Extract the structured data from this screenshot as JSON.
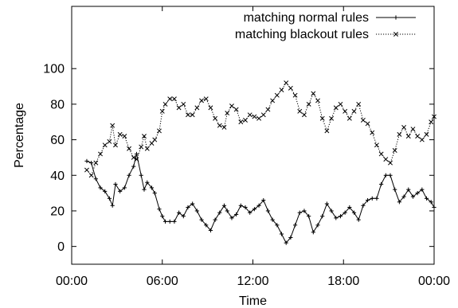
{
  "chart_data": {
    "type": "line",
    "title": "",
    "xlabel": "Time",
    "ylabel": "Percentage",
    "xlim": [
      0,
      24
    ],
    "ylim": [
      -10,
      135
    ],
    "x_ticks": [
      {
        "value": 0,
        "label": "00:00"
      },
      {
        "value": 6,
        "label": "06:00"
      },
      {
        "value": 12,
        "label": "12:00"
      },
      {
        "value": 18,
        "label": "18:00"
      },
      {
        "value": 24,
        "label": "00:00"
      }
    ],
    "y_ticks": [
      0,
      20,
      40,
      60,
      80,
      100
    ],
    "legend_position": "top-right",
    "grid": false,
    "series": [
      {
        "name": "matching normal rules",
        "marker": "plus",
        "line_style": "solid",
        "points": [
          [
            1.0,
            48
          ],
          [
            1.3,
            47
          ],
          [
            1.6,
            38
          ],
          [
            1.9,
            33
          ],
          [
            2.2,
            31
          ],
          [
            2.5,
            27
          ],
          [
            2.7,
            23
          ],
          [
            2.9,
            35
          ],
          [
            3.2,
            31
          ],
          [
            3.5,
            33
          ],
          [
            3.8,
            40
          ],
          [
            4.1,
            45
          ],
          [
            4.3,
            52
          ],
          [
            4.6,
            40
          ],
          [
            4.8,
            32
          ],
          [
            5.0,
            36
          ],
          [
            5.3,
            33
          ],
          [
            5.5,
            30
          ],
          [
            5.8,
            21
          ],
          [
            6.0,
            17
          ],
          [
            6.2,
            14
          ],
          [
            6.5,
            14
          ],
          [
            6.8,
            14
          ],
          [
            7.1,
            19
          ],
          [
            7.4,
            17
          ],
          [
            7.7,
            22
          ],
          [
            8.0,
            24
          ],
          [
            8.3,
            20
          ],
          [
            8.6,
            15
          ],
          [
            8.9,
            12
          ],
          [
            9.2,
            9
          ],
          [
            9.5,
            15
          ],
          [
            9.8,
            19
          ],
          [
            10.1,
            23
          ],
          [
            10.3,
            20
          ],
          [
            10.6,
            16
          ],
          [
            10.9,
            18
          ],
          [
            11.2,
            23
          ],
          [
            11.5,
            22
          ],
          [
            11.8,
            19
          ],
          [
            12.1,
            21
          ],
          [
            12.4,
            23
          ],
          [
            12.7,
            26
          ],
          [
            13.0,
            20
          ],
          [
            13.3,
            15
          ],
          [
            13.6,
            12
          ],
          [
            13.9,
            7
          ],
          [
            14.2,
            2
          ],
          [
            14.5,
            5
          ],
          [
            14.8,
            12
          ],
          [
            15.1,
            19
          ],
          [
            15.4,
            20
          ],
          [
            15.7,
            17
          ],
          [
            16.0,
            8
          ],
          [
            16.3,
            12
          ],
          [
            16.6,
            17
          ],
          [
            16.9,
            24
          ],
          [
            17.2,
            20
          ],
          [
            17.5,
            16
          ],
          [
            17.8,
            17
          ],
          [
            18.1,
            19
          ],
          [
            18.4,
            22
          ],
          [
            18.7,
            19
          ],
          [
            19.0,
            15
          ],
          [
            19.3,
            23
          ],
          [
            19.6,
            26
          ],
          [
            19.9,
            27
          ],
          [
            20.2,
            27
          ],
          [
            20.5,
            35
          ],
          [
            20.8,
            40
          ],
          [
            21.1,
            40
          ],
          [
            21.4,
            32
          ],
          [
            21.7,
            25
          ],
          [
            22.0,
            28
          ],
          [
            22.3,
            32
          ],
          [
            22.6,
            28
          ],
          [
            22.9,
            30
          ],
          [
            23.2,
            32
          ],
          [
            23.5,
            27
          ],
          [
            23.8,
            25
          ],
          [
            24.0,
            22
          ]
        ]
      },
      {
        "name": "matching blackout rules",
        "marker": "cross",
        "line_style": "dotted",
        "points": [
          [
            1.0,
            43
          ],
          [
            1.3,
            40
          ],
          [
            1.6,
            47
          ],
          [
            1.9,
            52
          ],
          [
            2.2,
            57
          ],
          [
            2.5,
            59
          ],
          [
            2.7,
            68
          ],
          [
            2.9,
            57
          ],
          [
            3.2,
            63
          ],
          [
            3.5,
            62
          ],
          [
            3.8,
            55
          ],
          [
            4.1,
            50
          ],
          [
            4.3,
            49
          ],
          [
            4.6,
            56
          ],
          [
            4.8,
            62
          ],
          [
            5.0,
            55
          ],
          [
            5.3,
            58
          ],
          [
            5.5,
            60
          ],
          [
            5.8,
            65
          ],
          [
            6.0,
            76
          ],
          [
            6.2,
            80
          ],
          [
            6.5,
            83
          ],
          [
            6.8,
            83
          ],
          [
            7.1,
            78
          ],
          [
            7.4,
            80
          ],
          [
            7.7,
            74
          ],
          [
            8.0,
            74
          ],
          [
            8.3,
            78
          ],
          [
            8.6,
            82
          ],
          [
            8.9,
            83
          ],
          [
            9.2,
            78
          ],
          [
            9.5,
            72
          ],
          [
            9.8,
            68
          ],
          [
            10.1,
            67
          ],
          [
            10.3,
            75
          ],
          [
            10.6,
            79
          ],
          [
            10.9,
            77
          ],
          [
            11.2,
            70
          ],
          [
            11.5,
            71
          ],
          [
            11.8,
            74
          ],
          [
            12.1,
            73
          ],
          [
            12.4,
            72
          ],
          [
            12.7,
            74
          ],
          [
            13.0,
            77
          ],
          [
            13.3,
            82
          ],
          [
            13.6,
            85
          ],
          [
            13.9,
            88
          ],
          [
            14.2,
            92
          ],
          [
            14.5,
            89
          ],
          [
            14.8,
            85
          ],
          [
            15.1,
            76
          ],
          [
            15.4,
            74
          ],
          [
            15.7,
            80
          ],
          [
            16.0,
            86
          ],
          [
            16.3,
            82
          ],
          [
            16.6,
            72
          ],
          [
            16.9,
            65
          ],
          [
            17.2,
            72
          ],
          [
            17.5,
            78
          ],
          [
            17.8,
            80
          ],
          [
            18.1,
            76
          ],
          [
            18.4,
            72
          ],
          [
            18.7,
            76
          ],
          [
            19.0,
            80
          ],
          [
            19.3,
            71
          ],
          [
            19.6,
            69
          ],
          [
            19.9,
            64
          ],
          [
            20.2,
            57
          ],
          [
            20.5,
            52
          ],
          [
            20.8,
            49
          ],
          [
            21.1,
            47
          ],
          [
            21.4,
            54
          ],
          [
            21.7,
            63
          ],
          [
            22.0,
            67
          ],
          [
            22.3,
            62
          ],
          [
            22.6,
            66
          ],
          [
            22.9,
            62
          ],
          [
            23.2,
            60
          ],
          [
            23.5,
            63
          ],
          [
            23.8,
            70
          ],
          [
            24.0,
            73
          ]
        ]
      }
    ]
  }
}
